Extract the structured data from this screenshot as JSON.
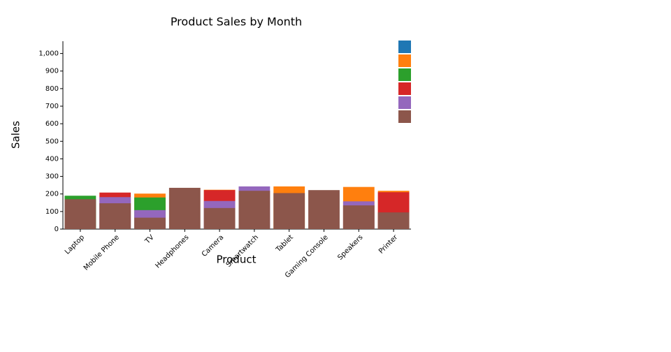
{
  "chart_data": {
    "type": "bar",
    "title": "Product Sales by Month",
    "x_label": "Product",
    "y_label": "Sales",
    "categories": [
      "Laptop",
      "Mobile Phone",
      "TV",
      "Headphones",
      "Camera",
      "Smartwatch",
      "Tablet",
      "Gaming Console",
      "Speakers",
      "Printer"
    ],
    "series": [
      {
        "color": "#1f77b4",
        "values": [
          null,
          null,
          null,
          null,
          null,
          null,
          null,
          null,
          null,
          null
        ]
      },
      {
        "color": "#ff7f0e",
        "values": [
          null,
          null,
          202,
          null,
          224,
          null,
          243,
          null,
          240,
          218
        ]
      },
      {
        "color": "#2ca02c",
        "values": [
          190,
          null,
          180,
          null,
          null,
          null,
          null,
          null,
          null,
          null
        ]
      },
      {
        "color": "#d62728",
        "values": [
          null,
          208,
          null,
          null,
          222,
          null,
          null,
          null,
          null,
          210
        ]
      },
      {
        "color": "#9467bd",
        "values": [
          null,
          182,
          108,
          null,
          160,
          243,
          null,
          null,
          158,
          null
        ]
      },
      {
        "color": "#8c564b",
        "values": [
          170,
          147,
          65,
          235,
          120,
          218,
          205,
          222,
          135,
          95
        ]
      }
    ],
    "ylim": [
      0,
      1070
    ],
    "yticks": [
      0,
      100,
      200,
      300,
      400,
      500,
      600,
      700,
      800,
      900,
      {
        "value": 1000,
        "label": "1,000"
      }
    ]
  }
}
